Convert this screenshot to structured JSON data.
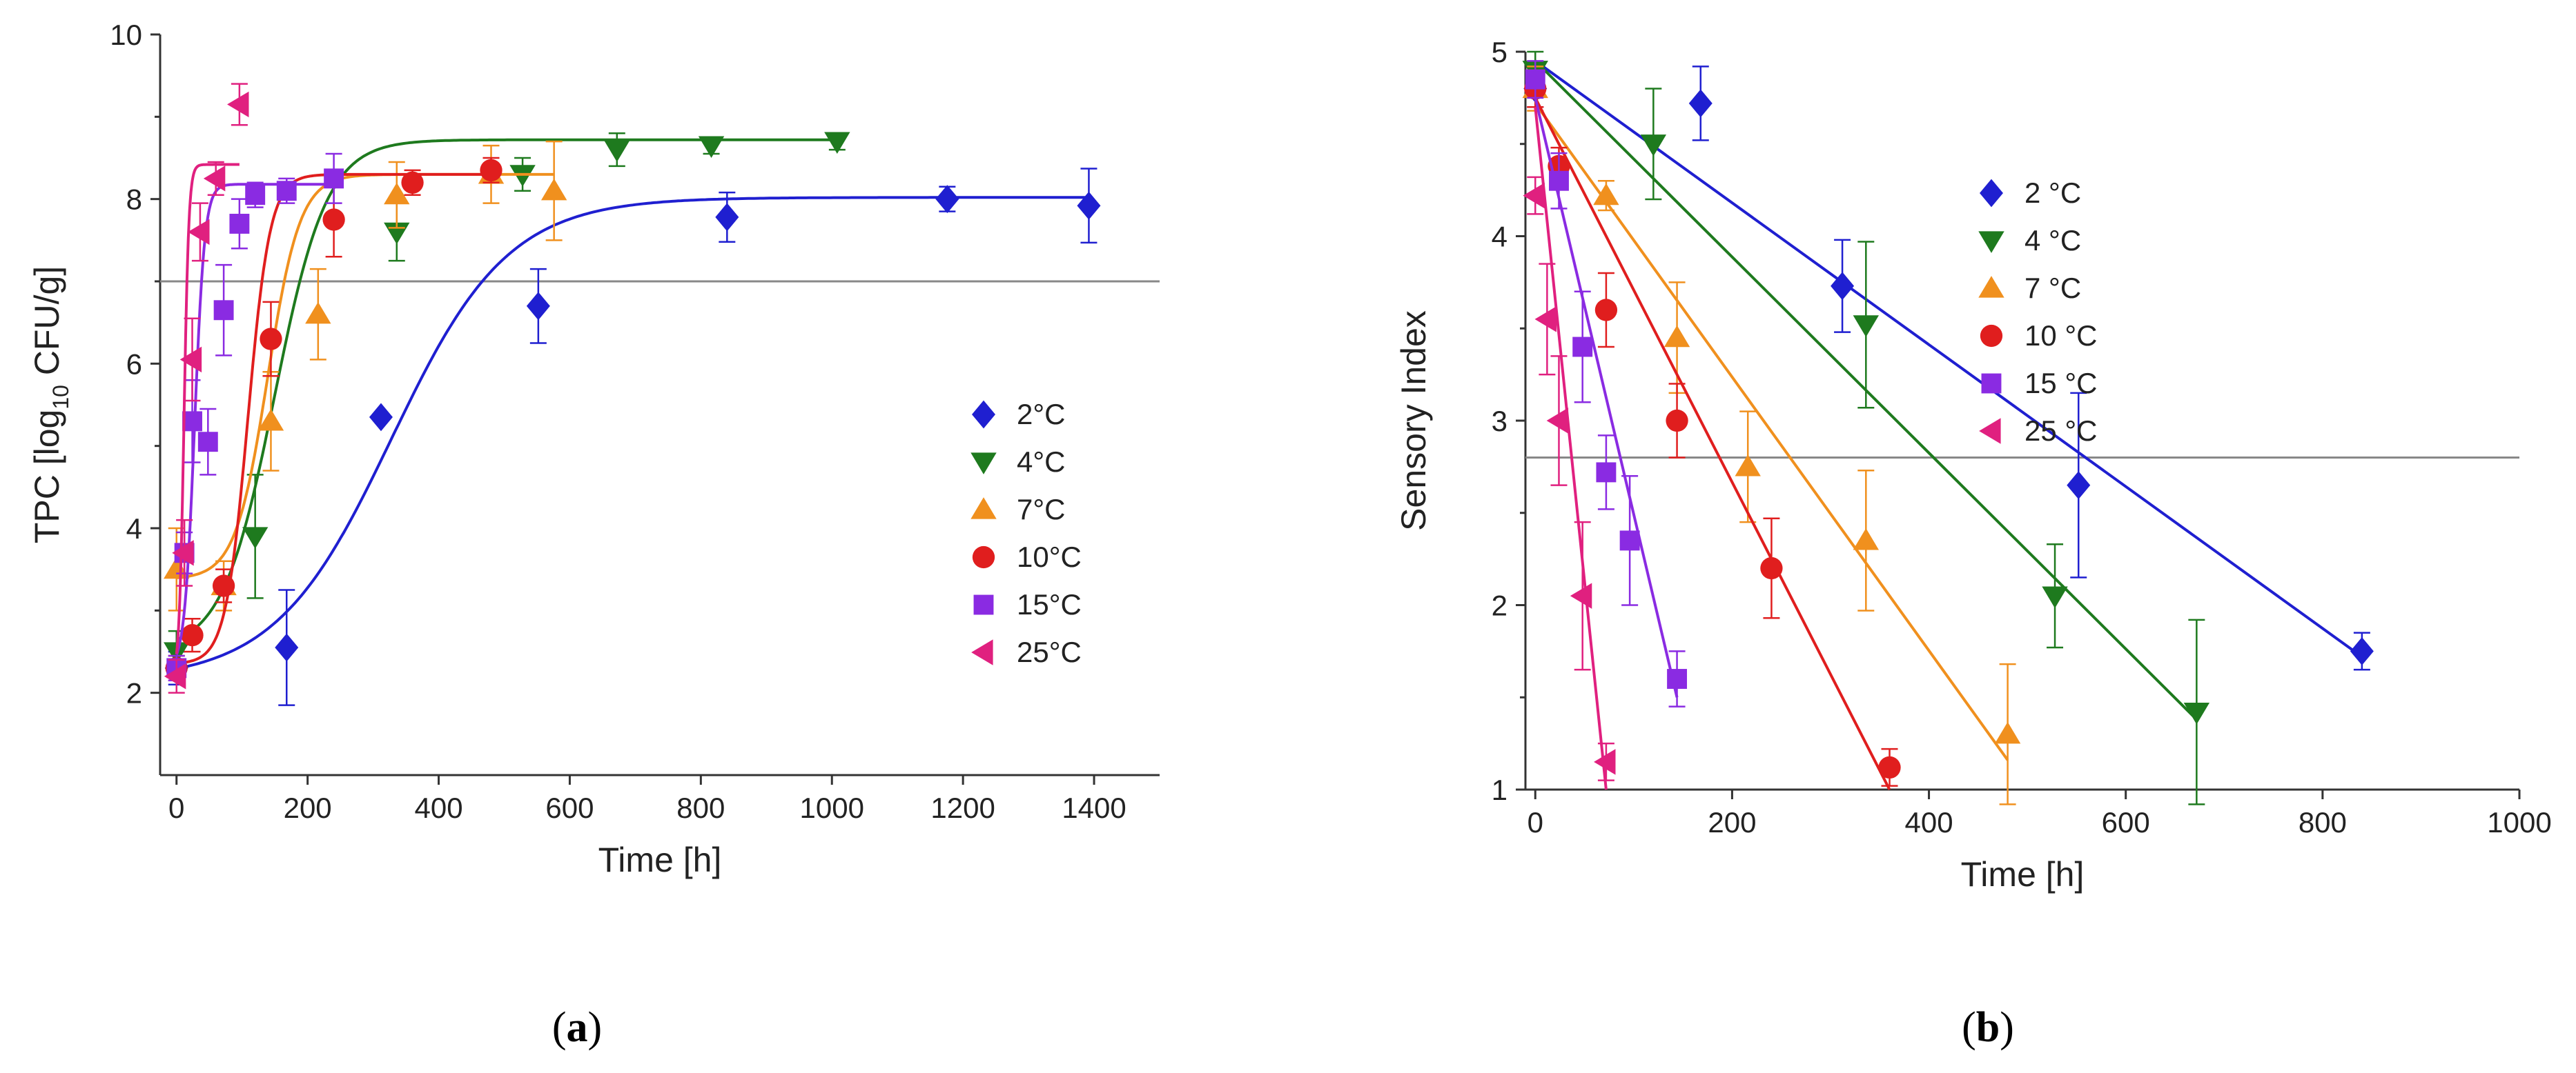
{
  "chart_data": [
    {
      "panel_label": "a",
      "type": "scatter",
      "title": "",
      "xlabel": "Time [h]",
      "ylabel_main": "TPC [log",
      "ylabel_sub": "10",
      "ylabel_end": " CFU/g]",
      "xlim": [
        -25,
        1500
      ],
      "ylim": [
        1,
        10
      ],
      "xticks": [
        "0",
        "200",
        "400",
        "600",
        "800",
        "1000",
        "1200",
        "1400"
      ],
      "yticks": [
        "2",
        "4",
        "6",
        "8",
        "10"
      ],
      "reference_line_y": 7,
      "legend_position": "right",
      "grid": false,
      "fit": "sigmoid",
      "series": [
        {
          "name": "2°C",
          "color": "#1f1fd0",
          "marker": "diamond",
          "points": [
            [
              0,
              2.3,
              0.2
            ],
            [
              168,
              2.55,
              0.7
            ],
            [
              312,
              5.35,
              0
            ],
            [
              552,
              6.7,
              0.45
            ],
            [
              840,
              7.78,
              0.3
            ],
            [
              1176,
              8.0,
              0.15
            ],
            [
              1392,
              7.92,
              0.45
            ]
          ],
          "fit_params": {
            "y0": 2.15,
            "ymax": 8.02,
            "mu": 0.0165,
            "lag": 150
          }
        },
        {
          "name": "4°C",
          "color": "#1e7a1e",
          "marker": "triangle-down",
          "points": [
            [
              0,
              2.5,
              0.25
            ],
            [
              120,
              3.9,
              0.75
            ],
            [
              336,
              7.6,
              0.35
            ],
            [
              528,
              8.3,
              0.2
            ],
            [
              672,
              8.6,
              0.2
            ],
            [
              816,
              8.65,
              0.1
            ],
            [
              1008,
              8.7,
              0.1
            ]
          ],
          "fit_params": {
            "y0": 2.5,
            "ymax": 8.72,
            "mu": 0.039,
            "lag": 70
          }
        },
        {
          "name": "7°C",
          "color": "#f0901e",
          "marker": "triangle-up",
          "points": [
            [
              0,
              3.5,
              0.5
            ],
            [
              72,
              3.3,
              0.3
            ],
            [
              144,
              5.3,
              0.6
            ],
            [
              216,
              6.6,
              0.55
            ],
            [
              336,
              8.05,
              0.4
            ],
            [
              480,
              8.3,
              0.35
            ],
            [
              576,
              8.1,
              0.6
            ]
          ],
          "fit_params": {
            "y0": 3.38,
            "ymax": 8.3,
            "mu": 0.05,
            "lag": 90
          }
        },
        {
          "name": "10°C",
          "color": "#e01e1e",
          "marker": "circle",
          "points": [
            [
              0,
              2.3,
              0.15
            ],
            [
              24,
              2.7,
              0.2
            ],
            [
              72,
              3.3,
              0.2
            ],
            [
              144,
              6.3,
              0.45
            ],
            [
              240,
              7.75,
              0.45
            ],
            [
              360,
              8.2,
              0.15
            ],
            [
              480,
              8.35,
              0.15
            ]
          ],
          "fit_params": {
            "y0": 2.35,
            "ymax": 8.3,
            "mu": 0.088,
            "lag": 75
          }
        },
        {
          "name": "15°C",
          "color": "#8a2be2",
          "marker": "square",
          "points": [
            [
              0,
              2.3,
              0.15
            ],
            [
              12,
              3.7,
              0.25
            ],
            [
              24,
              5.3,
              0.5
            ],
            [
              48,
              5.05,
              0.4
            ],
            [
              72,
              6.65,
              0.55
            ],
            [
              96,
              7.7,
              0.3
            ],
            [
              120,
              8.05,
              0.15
            ],
            [
              168,
              8.1,
              0.15
            ],
            [
              240,
              8.25,
              0.3
            ]
          ],
          "fit_params": {
            "y0": 2.3,
            "ymax": 8.18,
            "mu": 0.19,
            "lag": 12
          }
        },
        {
          "name": "25°C",
          "color": "#e0207f",
          "marker": "triangle-left",
          "points": [
            [
              0,
              2.2,
              0.2
            ],
            [
              12,
              3.7,
              0.4
            ],
            [
              24,
              6.05,
              0.5
            ],
            [
              36,
              7.6,
              0.35
            ],
            [
              60,
              8.25,
              0.2
            ],
            [
              96,
              9.15,
              0.25
            ]
          ],
          "fit_params": {
            "y0": 2.2,
            "ymax": 8.42,
            "mu": 0.42,
            "lag": 4
          }
        }
      ]
    },
    {
      "panel_label": "b",
      "type": "scatter",
      "title": "",
      "xlabel": "Time [h]",
      "ylabel": "Sensory Index",
      "xlim": [
        -10,
        1000
      ],
      "ylim": [
        1,
        5
      ],
      "xticks": [
        "0",
        "200",
        "400",
        "600",
        "800",
        "1000"
      ],
      "yticks": [
        "1",
        "2",
        "3",
        "4",
        "5"
      ],
      "reference_line_y": 2.8,
      "legend_position": "top-right",
      "grid": false,
      "fit": "linear",
      "series": [
        {
          "name": "2 °C",
          "color": "#1f1fd0",
          "marker": "diamond",
          "points": [
            [
              0,
              4.8,
              0.1
            ],
            [
              168,
              4.72,
              0.2
            ],
            [
              312,
              3.73,
              0.25
            ],
            [
              552,
              2.65,
              0.5
            ],
            [
              840,
              1.75,
              0.1
            ]
          ],
          "fit_line": [
            [
              0,
              4.95
            ],
            [
              840,
              1.72
            ]
          ]
        },
        {
          "name": "4 °C",
          "color": "#1e7a1e",
          "marker": "triangle-down",
          "points": [
            [
              0,
              4.9,
              0.1
            ],
            [
              120,
              4.5,
              0.3
            ],
            [
              336,
              3.52,
              0.45
            ],
            [
              528,
              2.05,
              0.28
            ],
            [
              672,
              1.42,
              0.5
            ]
          ],
          "fit_line": [
            [
              0,
              4.95
            ],
            [
              672,
              1.38
            ]
          ]
        },
        {
          "name": "7 °C",
          "color": "#f0901e",
          "marker": "triangle-up",
          "points": [
            [
              0,
              4.8,
              0.12
            ],
            [
              72,
              4.22,
              0.08
            ],
            [
              144,
              3.45,
              0.3
            ],
            [
              216,
              2.75,
              0.3
            ],
            [
              336,
              2.35,
              0.38
            ],
            [
              480,
              1.3,
              0.38
            ]
          ],
          "fit_line": [
            [
              0,
              4.72
            ],
            [
              480,
              1.16
            ]
          ]
        },
        {
          "name": "10 °C",
          "color": "#e01e1e",
          "marker": "circle",
          "points": [
            [
              0,
              4.8,
              0.1
            ],
            [
              24,
              4.38,
              0.1
            ],
            [
              72,
              3.6,
              0.2
            ],
            [
              144,
              3.0,
              0.2
            ],
            [
              240,
              2.2,
              0.27
            ],
            [
              360,
              1.12,
              0.1
            ]
          ],
          "fit_line": [
            [
              0,
              4.75
            ],
            [
              360,
              1.0
            ]
          ]
        },
        {
          "name": "15 °C",
          "color": "#8a2be2",
          "marker": "square",
          "points": [
            [
              0,
              4.85,
              0.1
            ],
            [
              24,
              4.3,
              0.15
            ],
            [
              48,
              3.4,
              0.3
            ],
            [
              72,
              2.72,
              0.2
            ],
            [
              96,
              2.35,
              0.35
            ],
            [
              144,
              1.6,
              0.15
            ]
          ],
          "fit_line": [
            [
              0,
              4.75
            ],
            [
              144,
              1.5
            ]
          ]
        },
        {
          "name": "25 °C",
          "color": "#e0207f",
          "marker": "triangle-left",
          "points": [
            [
              0,
              4.22,
              0.1
            ],
            [
              12,
              3.55,
              0.3
            ],
            [
              24,
              3.0,
              0.35
            ],
            [
              48,
              2.05,
              0.4
            ],
            [
              72,
              1.15,
              0.1
            ]
          ],
          "fit_line": [
            [
              0,
              4.7
            ],
            [
              72,
              1.0
            ]
          ]
        }
      ]
    }
  ]
}
